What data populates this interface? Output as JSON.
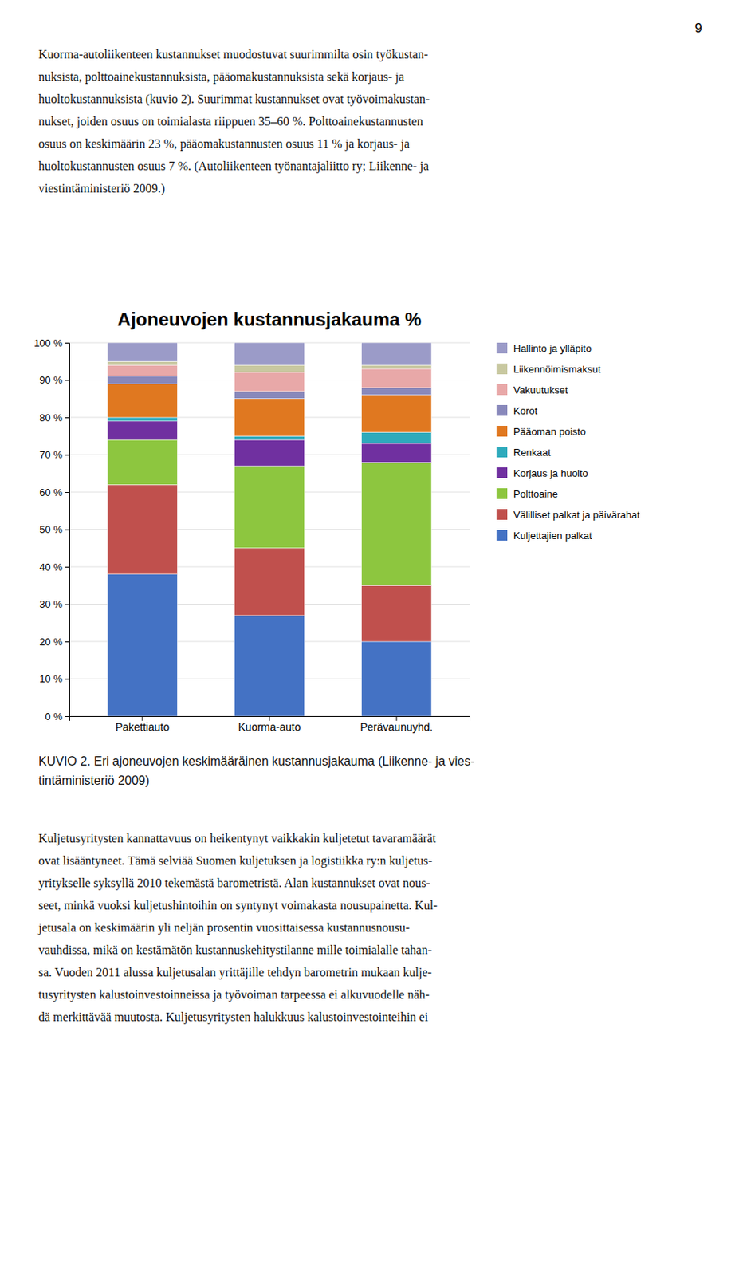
{
  "page_number": "9",
  "text_above": [
    "Kuorma-autoliikenteen kustannukset muodostuvat suurimmilta osin työkustan-",
    "nuksista, polttoainekustannuksista, pääomakustannuksista sekä korjaus- ja",
    "huoltokustannuksista (kuvio 2). Suurimmat kustannukset ovat työvoimakustan-",
    "nukset, joiden osuus on toimialasta riippuen 35–60 %. Polttoainekustannusten",
    "osuus on keskimäärin 23 %, pääomakustannusten osuus 11 % ja korjaus- ja",
    "huoltokustannusten osuus 7 %. (Autoliikenteen työnantajaliitto ry; Liikenne- ja",
    "viestintäministeriö 2009.)"
  ],
  "caption": [
    "KUVIO 2. Eri ajoneuvojen keskimääräinen kustannusjakauma (Liikenne- ja vies-",
    "tintäministeriö 2009)"
  ],
  "text_below": [
    "Kuljetusyritysten kannattavuus on heikentynyt vaikkakin kuljetetut tavaramäärät",
    "ovat lisääntyneet. Tämä selviää Suomen kuljetuksen ja logistiikka ry:n kuljetus-",
    "yritykselle syksyllä 2010 tekemästä barometristä. Alan kustannukset ovat nous-",
    "seet, minkä vuoksi kuljetushintoihin on syntynyt voimakasta nousupainetta. Kul-",
    "jetusala on keskimäärin yli neljän prosentin vuosittaisessa kustannusnousu-",
    "vauhdissa, mikä on kestämätön kustannuskehitystilanne mille toimialalle tahan-",
    "sa. Vuoden 2011 alussa kuljetusalan yrittäjille tehdyn barometrin mukaan kulje-",
    "tusyritysten kalustoinvestoinneissa ja työvoiman tarpeessa ei alkuvuodelle näh-",
    "dä merkittävää muutosta. Kuljetusyritysten halukkuus kalustoinvestointeihin ei"
  ],
  "chart_data": {
    "type": "bar",
    "title": "Ajoneuvojen kustannusjakauma %",
    "stacked": true,
    "grid": true,
    "legend": "right",
    "categories": [
      "Pakettiauto",
      "Kuorma-auto",
      "Perävaunuyhd."
    ],
    "series": [
      {
        "name": "Hallinto ja ylläpito",
        "color": "#9B9BC8",
        "values": [
          5,
          6,
          6
        ]
      },
      {
        "name": "Liikennöimismaksut",
        "color": "#C8C8A0",
        "values": [
          1,
          2,
          1
        ]
      },
      {
        "name": "Vakuutukset",
        "color": "#E8A8A8",
        "values": [
          3,
          5,
          5
        ]
      },
      {
        "name": "Korot",
        "color": "#8888BB",
        "values": [
          2,
          2,
          2
        ]
      },
      {
        "name": "Pääoman poisto",
        "color": "#E07820",
        "values": [
          9,
          10,
          10
        ]
      },
      {
        "name": "Renkaat",
        "color": "#2EAABC",
        "values": [
          1,
          1,
          3
        ]
      },
      {
        "name": "Korjaus ja huolto",
        "color": "#7030A0",
        "values": [
          5,
          7,
          5
        ]
      },
      {
        "name": "Polttoaine",
        "color": "#8DC63F",
        "values": [
          12,
          22,
          33
        ]
      },
      {
        "name": "Välilliset palkat ja päivärahat",
        "color": "#C0504D",
        "values": [
          24,
          18,
          15
        ]
      },
      {
        "name": "Kuljettajien palkat",
        "color": "#4472C4",
        "values": [
          38,
          27,
          20
        ]
      }
    ],
    "ylim": [
      0,
      100
    ],
    "yticks": [
      {
        "value": 0,
        "label": "0 %"
      },
      {
        "value": 10,
        "label": "10 %"
      },
      {
        "value": 20,
        "label": "20 %"
      },
      {
        "value": 30,
        "label": "30 %"
      },
      {
        "value": 40,
        "label": "40 %"
      },
      {
        "value": 50,
        "label": "50 %"
      },
      {
        "value": 60,
        "label": "60 %"
      },
      {
        "value": 70,
        "label": "70 %"
      },
      {
        "value": 80,
        "label": "80 %"
      },
      {
        "value": 90,
        "label": "90 %"
      },
      {
        "value": 100,
        "label": "100 %"
      }
    ]
  }
}
